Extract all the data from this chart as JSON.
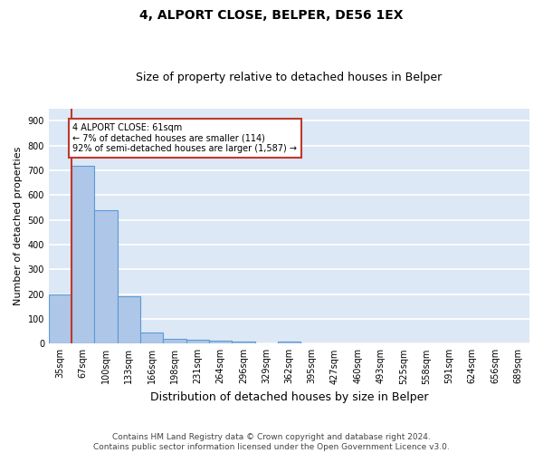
{
  "title1": "4, ALPORT CLOSE, BELPER, DE56 1EX",
  "title2": "Size of property relative to detached houses in Belper",
  "xlabel": "Distribution of detached houses by size in Belper",
  "ylabel": "Number of detached properties",
  "categories": [
    "35sqm",
    "67sqm",
    "100sqm",
    "133sqm",
    "166sqm",
    "198sqm",
    "231sqm",
    "264sqm",
    "296sqm",
    "329sqm",
    "362sqm",
    "395sqm",
    "427sqm",
    "460sqm",
    "493sqm",
    "525sqm",
    "558sqm",
    "591sqm",
    "624sqm",
    "656sqm",
    "689sqm"
  ],
  "values": [
    200,
    718,
    537,
    192,
    46,
    20,
    14,
    12,
    8,
    0,
    8,
    0,
    0,
    0,
    0,
    0,
    0,
    0,
    0,
    0,
    0
  ],
  "bar_color": "#aec6e8",
  "bar_edge_color": "#5b9bd5",
  "background_color": "#dce8f5",
  "grid_color": "#ffffff",
  "vline_color": "#c0392b",
  "annotation_text": "4 ALPORT CLOSE: 61sqm\n← 7% of detached houses are smaller (114)\n92% of semi-detached houses are larger (1,587) →",
  "annotation_box_facecolor": "#ffffff",
  "annotation_box_edge": "#c0392b",
  "ylim": [
    0,
    950
  ],
  "yticks": [
    0,
    100,
    200,
    300,
    400,
    500,
    600,
    700,
    800,
    900
  ],
  "footer": "Contains HM Land Registry data © Crown copyright and database right 2024.\nContains public sector information licensed under the Open Government Licence v3.0.",
  "title1_fontsize": 10,
  "title2_fontsize": 9,
  "xlabel_fontsize": 9,
  "ylabel_fontsize": 8,
  "tick_fontsize": 7,
  "footer_fontsize": 6.5
}
